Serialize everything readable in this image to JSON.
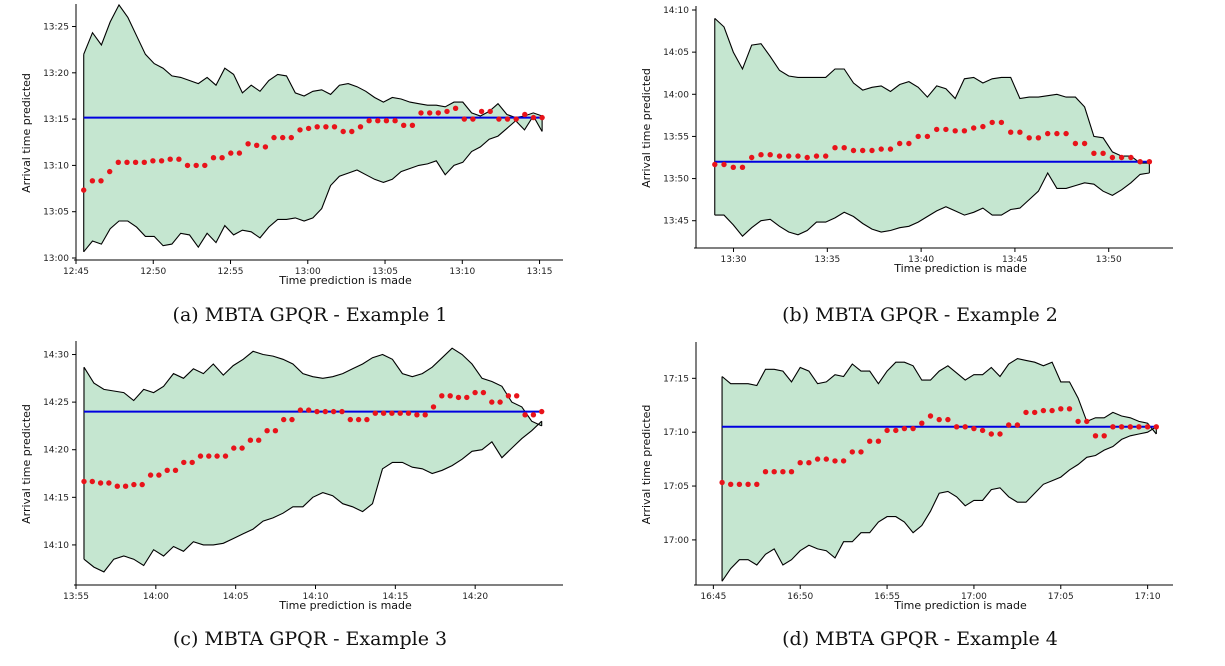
{
  "chart_data": [
    {
      "type": "line",
      "caption": "(a) MBTA GPQR - Example 1",
      "xlabel": "Time prediction is made",
      "ylabel": "Arrival time predicted",
      "xlim": [
        "12:45",
        "13:16"
      ],
      "ylim": [
        "13:00",
        "13:27"
      ],
      "x_ticks": [
        "12:45",
        "12:50",
        "12:55",
        "13:00",
        "13:05",
        "13:10",
        "13:15"
      ],
      "y_ticks": [
        "13:00",
        "13:05",
        "13:10",
        "13:15",
        "13:20",
        "13:25"
      ],
      "x_start": "12:45:30",
      "x_end": "13:15:10",
      "colors": {
        "band": "#c5e6d0",
        "bound": "#000000",
        "actual": "#0000e0",
        "prediction": "#e8131a"
      },
      "actual_arrival": "13:15:10",
      "predictions": [
        "13:07:20",
        "13:08:20",
        "13:08:20",
        "13:09:20",
        "13:10:20",
        "13:10:20",
        "13:10:20",
        "13:10:20",
        "13:10:30",
        "13:10:30",
        "13:10:40",
        "13:10:40",
        "13:10:00",
        "13:10:00",
        "13:10:00",
        "13:10:50",
        "13:10:50",
        "13:11:20",
        "13:11:20",
        "13:12:20",
        "13:12:10",
        "13:12:00",
        "13:13:00",
        "13:13:00",
        "13:13:00",
        "13:13:50",
        "13:14:00",
        "13:14:10",
        "13:14:10",
        "13:14:10",
        "13:13:40",
        "13:13:40",
        "13:14:10",
        "13:14:50",
        "13:14:50",
        "13:14:50",
        "13:14:50",
        "13:14:20",
        "13:14:20",
        "13:15:40",
        "13:15:40",
        "13:15:40",
        "13:15:50",
        "13:16:10",
        "13:15:00",
        "13:15:00",
        "13:15:50",
        "13:15:50",
        "13:15:00",
        "13:15:00",
        "13:15:00",
        "13:15:30",
        "13:15:10",
        "13:15:10"
      ],
      "upper_bound": [
        "13:22:00",
        "13:24:20",
        "13:23:00",
        "13:25:30",
        "13:27:20",
        "13:26:00",
        "13:24:00",
        "13:22:00",
        "13:21:00",
        "13:20:30",
        "13:19:40",
        "13:19:30",
        "13:19:10",
        "13:18:50",
        "13:19:30",
        "13:18:40",
        "13:20:30",
        "13:19:50",
        "13:17:50",
        "13:18:40",
        "13:18:00",
        "13:19:10",
        "13:19:50",
        "13:19:40",
        "13:17:50",
        "13:17:30",
        "13:18:00",
        "13:18:10",
        "13:17:40",
        "13:18:40",
        "13:18:50",
        "13:18:30",
        "13:18:00",
        "13:17:20",
        "13:16:50",
        "13:17:20",
        "13:17:10",
        "13:16:50",
        "13:16:40",
        "13:16:30",
        "13:16:30",
        "13:16:20",
        "13:16:50",
        "13:16:50",
        "13:15:40",
        "13:15:20",
        "13:15:50",
        "13:16:40",
        "13:15:30",
        "13:15:10",
        "13:15:20",
        "13:15:40",
        "13:15:20"
      ],
      "lower_bound": [
        "13:00:40",
        "13:01:50",
        "13:01:30",
        "13:03:10",
        "13:04:00",
        "13:04:00",
        "13:03:20",
        "13:02:20",
        "13:02:20",
        "13:01:20",
        "13:01:30",
        "13:02:40",
        "13:02:30",
        "13:01:10",
        "13:02:40",
        "13:01:40",
        "13:03:30",
        "13:02:30",
        "13:03:00",
        "13:02:50",
        "13:02:10",
        "13:03:20",
        "13:04:10",
        "13:04:10",
        "13:04:20",
        "13:04:00",
        "13:04:20",
        "13:05:20",
        "13:07:50",
        "13:08:50",
        "13:09:10",
        "13:09:30",
        "13:09:00",
        "13:08:30",
        "13:08:10",
        "13:08:30",
        "13:09:20",
        "13:09:40",
        "13:10:00",
        "13:10:10",
        "13:10:30",
        "13:09:00",
        "13:10:00",
        "13:10:20",
        "13:11:30",
        "13:12:00",
        "13:12:50",
        "13:13:10",
        "13:14:00",
        "13:14:50",
        "13:13:50",
        "13:15:20",
        "13:13:40"
      ]
    },
    {
      "type": "line",
      "caption": "(b) MBTA GPQR - Example 2",
      "xlabel": "Time prediction is made",
      "ylabel": "Arrival time predicted",
      "xlim": [
        "13:28",
        "13:53"
      ],
      "ylim": [
        "13:42",
        "14:10"
      ],
      "x_ticks": [
        "13:30",
        "13:35",
        "13:40",
        "13:45",
        "13:50"
      ],
      "y_ticks": [
        "13:45",
        "13:50",
        "13:55",
        "14:00",
        "14:05",
        "14:10"
      ],
      "x_start": "13:29:00",
      "x_end": "13:52:10",
      "colors": {
        "band": "#c5e6d0",
        "bound": "#000000",
        "actual": "#0000e0",
        "prediction": "#e8131a"
      },
      "actual_arrival": "13:52:00",
      "predictions": [
        "13:51:40",
        "13:51:40",
        "13:51:20",
        "13:51:20",
        "13:52:30",
        "13:52:50",
        "13:52:50",
        "13:52:40",
        "13:52:40",
        "13:52:40",
        "13:52:30",
        "13:52:40",
        "13:52:40",
        "13:53:40",
        "13:53:40",
        "13:53:20",
        "13:53:20",
        "13:53:20",
        "13:53:30",
        "13:53:30",
        "13:54:10",
        "13:54:10",
        "13:55:00",
        "13:55:00",
        "13:55:50",
        "13:55:50",
        "13:55:40",
        "13:55:40",
        "13:56:00",
        "13:56:10",
        "13:56:40",
        "13:56:40",
        "13:55:30",
        "13:55:30",
        "13:54:50",
        "13:54:50",
        "13:55:20",
        "13:55:20",
        "13:55:20",
        "13:54:10",
        "13:54:10",
        "13:53:00",
        "13:53:00",
        "13:52:30",
        "13:52:30",
        "13:52:30",
        "13:52:00",
        "13:52:00"
      ],
      "upper_bound": [
        "14:09:00",
        "14:08:00",
        "14:05:00",
        "14:03:00",
        "14:05:50",
        "14:06:00",
        "14:04:30",
        "14:02:50",
        "14:02:10",
        "14:02:00",
        "14:02:00",
        "14:02:00",
        "14:02:00",
        "14:03:00",
        "14:03:00",
        "14:01:20",
        "14:00:30",
        "14:00:50",
        "14:01:00",
        "14:00:20",
        "14:01:10",
        "14:01:30",
        "14:00:50",
        "13:59:40",
        "14:01:00",
        "14:00:40",
        "13:59:30",
        "14:01:50",
        "14:02:00",
        "14:01:20",
        "14:01:50",
        "14:02:00",
        "14:02:00",
        "13:59:30",
        "13:59:40",
        "13:59:40",
        "13:59:50",
        "14:00:00",
        "13:59:40",
        "13:59:40",
        "13:58:30",
        "13:55:00",
        "13:54:50",
        "13:53:10",
        "13:52:40",
        "13:52:40",
        "13:51:50",
        "13:51:50"
      ],
      "lower_bound": [
        "13:45:40",
        "13:45:40",
        "13:44:30",
        "13:43:10",
        "13:44:10",
        "13:45:00",
        "13:45:10",
        "13:44:20",
        "13:43:40",
        "13:43:20",
        "13:43:50",
        "13:44:50",
        "13:44:50",
        "13:45:20",
        "13:46:00",
        "13:45:30",
        "13:44:40",
        "13:44:00",
        "13:43:40",
        "13:43:50",
        "13:44:10",
        "13:44:20",
        "13:44:50",
        "13:45:30",
        "13:46:10",
        "13:46:40",
        "13:46:10",
        "13:45:40",
        "13:46:00",
        "13:46:30",
        "13:45:40",
        "13:45:40",
        "13:46:20",
        "13:46:30",
        "13:47:30",
        "13:48:30",
        "13:50:40",
        "13:48:50",
        "13:48:50",
        "13:49:10",
        "13:49:30",
        "13:49:20",
        "13:48:30",
        "13:48:00",
        "13:48:40",
        "13:49:30",
        "13:50:30",
        "13:50:40"
      ]
    },
    {
      "type": "line",
      "caption": "(c) MBTA GPQR - Example 3",
      "xlabel": "Time prediction is made",
      "ylabel": "Arrival time predicted",
      "xlim": [
        "13:55",
        "14:25"
      ],
      "ylim": [
        "14:06",
        "14:31"
      ],
      "x_ticks": [
        "13:55",
        "14:00",
        "14:05",
        "14:10",
        "14:15",
        "14:20"
      ],
      "y_ticks": [
        "14:10",
        "14:15",
        "14:20",
        "14:25",
        "14:30"
      ],
      "x_start": "13:55:30",
      "x_end": "14:24:10",
      "colors": {
        "band": "#c5e6d0",
        "bound": "#000000",
        "actual": "#0000e0",
        "prediction": "#e8131a"
      },
      "actual_arrival": "14:24:00",
      "predictions": [
        "14:16:40",
        "14:16:40",
        "14:16:30",
        "14:16:30",
        "14:16:10",
        "14:16:10",
        "14:16:20",
        "14:16:20",
        "14:17:20",
        "14:17:20",
        "14:17:50",
        "14:17:50",
        "14:18:40",
        "14:18:40",
        "14:19:20",
        "14:19:20",
        "14:19:20",
        "14:19:20",
        "14:20:10",
        "14:20:10",
        "14:21:00",
        "14:21:00",
        "14:22:00",
        "14:22:00",
        "14:23:10",
        "14:23:10",
        "14:24:10",
        "14:24:10",
        "14:24:00",
        "14:24:00",
        "14:24:00",
        "14:24:00",
        "14:23:10",
        "14:23:10",
        "14:23:10",
        "14:23:50",
        "14:23:50",
        "14:23:50",
        "14:23:50",
        "14:23:50",
        "14:23:40",
        "14:23:40",
        "14:24:30",
        "14:25:40",
        "14:25:40",
        "14:25:30",
        "14:25:30",
        "14:26:00",
        "14:26:00",
        "14:25:00",
        "14:25:00",
        "14:25:40",
        "14:25:40",
        "14:23:40",
        "14:23:40",
        "14:24:00"
      ],
      "upper_bound": [
        "14:28:40",
        "14:27:00",
        "14:26:20",
        "14:26:10",
        "14:26:00",
        "14:25:10",
        "14:26:20",
        "14:26:00",
        "14:26:40",
        "14:28:00",
        "14:27:30",
        "14:28:30",
        "14:28:00",
        "14:29:00",
        "14:27:50",
        "14:28:50",
        "14:29:30",
        "14:30:20",
        "14:30:00",
        "14:29:50",
        "14:29:30",
        "14:29:00",
        "14:28:00",
        "14:27:40",
        "14:27:30",
        "14:27:40",
        "14:28:00",
        "14:28:30",
        "14:29:00",
        "14:29:40",
        "14:30:00",
        "14:29:30",
        "14:28:00",
        "14:27:40",
        "14:28:00",
        "14:28:40",
        "14:29:40",
        "14:30:40",
        "14:30:00",
        "14:29:00",
        "14:27:30",
        "14:27:10",
        "14:26:40",
        "14:25:00",
        "14:24:30",
        "14:23:00",
        "14:22:30"
      ],
      "lower_bound": [
        "14:08:30",
        "14:07:40",
        "14:07:10",
        "14:08:30",
        "14:08:50",
        "14:08:30",
        "14:07:50",
        "14:09:30",
        "14:08:50",
        "14:09:50",
        "14:09:20",
        "14:10:20",
        "14:10:00",
        "14:10:00",
        "14:10:10",
        "14:10:40",
        "14:11:10",
        "14:11:40",
        "14:12:30",
        "14:12:50",
        "14:13:20",
        "14:14:00",
        "14:14:00",
        "14:15:00",
        "14:15:30",
        "14:15:10",
        "14:14:20",
        "14:14:00",
        "14:13:30",
        "14:14:20",
        "14:18:00",
        "14:18:40",
        "14:18:40",
        "14:18:10",
        "14:18:00",
        "14:17:30",
        "14:17:50",
        "14:18:20",
        "14:19:00",
        "14:19:50",
        "14:20:00",
        "14:20:50",
        "14:19:10",
        "14:20:10",
        "14:21:10",
        "14:22:00",
        "14:23:00"
      ]
    },
    {
      "type": "line",
      "caption": "(d) MBTA GPQR - Example 4",
      "xlabel": "Time prediction is made",
      "ylabel": "Arrival time predicted",
      "xlim": [
        "16:44",
        "17:11"
      ],
      "ylim": [
        "16:56",
        "17:18"
      ],
      "x_ticks": [
        "16:45",
        "16:50",
        "16:55",
        "17:00",
        "17:05",
        "17:10"
      ],
      "y_ticks": [
        "17:00",
        "17:05",
        "17:10",
        "17:15"
      ],
      "x_start": "16:45:30",
      "x_end": "17:10:30",
      "colors": {
        "band": "#c5e6d0",
        "bound": "#000000",
        "actual": "#0000e0",
        "prediction": "#e8131a"
      },
      "actual_arrival": "17:10:30",
      "predictions": [
        "17:05:20",
        "17:05:10",
        "17:05:10",
        "17:05:10",
        "17:05:10",
        "17:06:20",
        "17:06:20",
        "17:06:20",
        "17:06:20",
        "17:07:10",
        "17:07:10",
        "17:07:30",
        "17:07:30",
        "17:07:20",
        "17:07:20",
        "17:08:10",
        "17:08:10",
        "17:09:10",
        "17:09:10",
        "17:10:10",
        "17:10:10",
        "17:10:20",
        "17:10:20",
        "17:10:50",
        "17:11:30",
        "17:11:10",
        "17:11:10",
        "17:10:30",
        "17:10:30",
        "17:10:20",
        "17:10:10",
        "17:09:50",
        "17:09:50",
        "17:10:40",
        "17:10:40",
        "17:11:50",
        "17:11:50",
        "17:12:00",
        "17:12:00",
        "17:12:10",
        "17:12:10",
        "17:11:00",
        "17:11:00",
        "17:09:40",
        "17:09:40",
        "17:10:30",
        "17:10:30",
        "17:10:30",
        "17:10:30",
        "17:10:30",
        "17:10:30"
      ],
      "upper_bound": [
        "17:15:10",
        "17:14:30",
        "17:14:30",
        "17:14:30",
        "17:14:20",
        "17:15:50",
        "17:15:50",
        "17:15:40",
        "17:14:40",
        "17:16:00",
        "17:15:40",
        "17:14:30",
        "17:14:40",
        "17:15:20",
        "17:15:10",
        "17:16:20",
        "17:15:40",
        "17:15:40",
        "17:14:30",
        "17:15:40",
        "17:16:30",
        "17:16:30",
        "17:16:10",
        "17:14:50",
        "17:14:50",
        "17:15:40",
        "17:16:10",
        "17:15:30",
        "17:14:50",
        "17:15:20",
        "17:15:20",
        "17:16:00",
        "17:15:10",
        "17:16:20",
        "17:16:50",
        "17:16:40",
        "17:16:30",
        "17:16:10",
        "17:16:30",
        "17:14:40",
        "17:14:40",
        "17:13:10",
        "17:11:00",
        "17:11:20",
        "17:11:20",
        "17:11:50",
        "17:11:30",
        "17:11:20",
        "17:11:00",
        "17:10:50",
        "17:09:50"
      ],
      "lower_bound": [
        "16:56:10",
        "16:57:20",
        "16:58:10",
        "16:58:10",
        "16:57:40",
        "16:58:40",
        "16:59:10",
        "16:57:40",
        "16:58:10",
        "16:59:00",
        "16:59:30",
        "16:59:10",
        "16:59:00",
        "16:58:20",
        "16:59:50",
        "16:59:50",
        "17:00:40",
        "17:00:40",
        "17:01:40",
        "17:02:10",
        "17:02:10",
        "17:01:40",
        "17:00:40",
        "17:01:20",
        "17:02:40",
        "17:04:20",
        "17:04:30",
        "17:04:00",
        "17:03:10",
        "17:03:40",
        "17:03:40",
        "17:04:40",
        "17:04:50",
        "17:04:00",
        "17:03:30",
        "17:03:30",
        "17:04:20",
        "17:05:10",
        "17:05:30",
        "17:05:50",
        "17:06:30",
        "17:07:00",
        "17:07:40",
        "17:07:50",
        "17:08:20",
        "17:08:40",
        "17:09:20",
        "17:09:40",
        "17:09:50",
        "17:10:00",
        "17:10:30"
      ]
    }
  ]
}
